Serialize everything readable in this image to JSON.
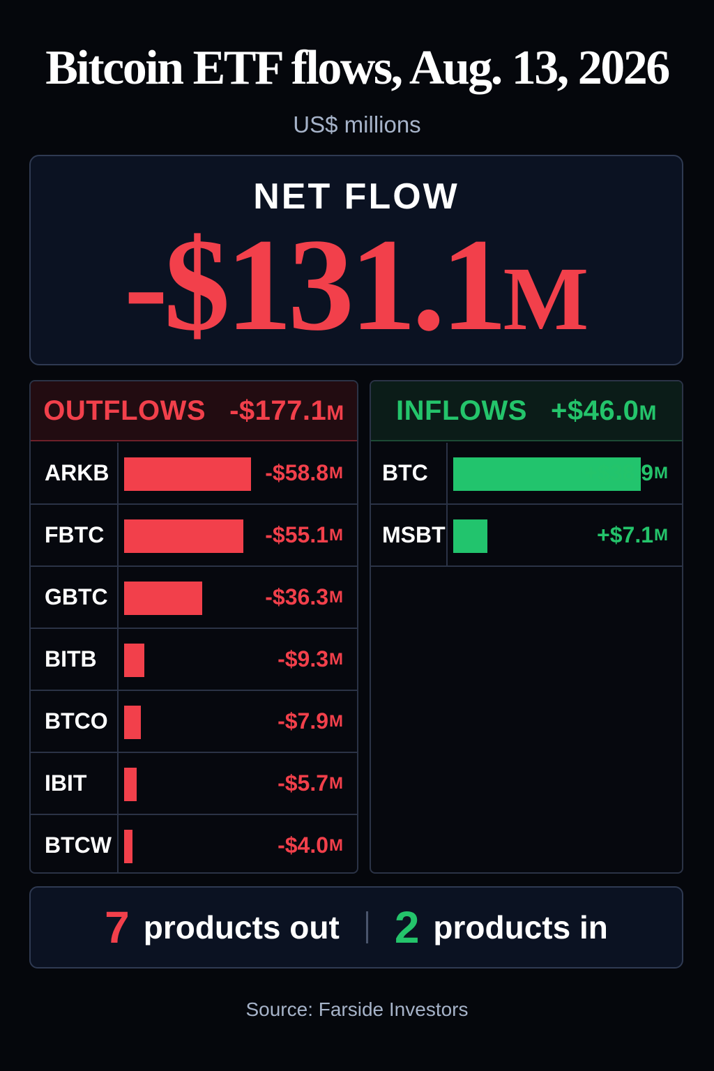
{
  "header": {
    "title": "Bitcoin ETF flows, Aug. 13, 2026",
    "subtitle": "US$ millions"
  },
  "net_flow": {
    "label": "NET FLOW",
    "amount": "-$131.1",
    "unit": "M"
  },
  "outflows": {
    "label": "OUTFLOWS",
    "total": "-$177.1",
    "unit": "M"
  },
  "inflows": {
    "label": "INFLOWS",
    "total": "+$46.0",
    "unit": "M"
  },
  "summary": {
    "out_count": "7",
    "out_text": "products out",
    "in_count": "2",
    "in_text": "products in"
  },
  "source": "Source: Farside Investors",
  "colors": {
    "negative": "#f2404b",
    "positive": "#22c46d",
    "background": "#05070c"
  },
  "chart_data": {
    "type": "bar",
    "title": "Bitcoin ETF flows, Aug. 13, 2026",
    "unit": "US$ millions",
    "scale_max": 58.8,
    "series": [
      {
        "name": "OUTFLOWS",
        "categories": [
          "ARKB",
          "FBTC",
          "GBTC",
          "BITB",
          "BTCO",
          "IBIT",
          "BTCW"
        ],
        "values": [
          -58.8,
          -55.1,
          -36.3,
          -9.3,
          -7.9,
          -5.7,
          -4.0
        ],
        "labels": [
          "-$58.8",
          "-$55.1",
          "-$36.3",
          "-$9.3",
          "-$7.9",
          "-$5.7",
          "-$4.0"
        ]
      },
      {
        "name": "INFLOWS",
        "categories": [
          "BTC",
          "MSBT"
        ],
        "values": [
          38.9,
          7.1
        ],
        "labels": [
          "+$38.9",
          "+$7.1"
        ]
      }
    ],
    "label_unit": "M"
  }
}
